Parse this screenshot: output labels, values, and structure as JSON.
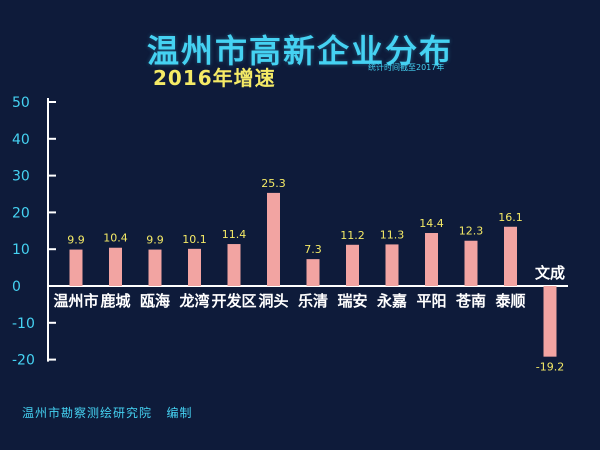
{
  "title": "温州市高新企业分布",
  "subtitle": "2016年增速",
  "note": "统计时间截至2017年",
  "footer": "温州市勘察测绘研究院   编制",
  "colors": {
    "background": "#0e1b3a",
    "bar": "#f2a4a2",
    "axis": "#ffffff",
    "title": "#45d2f2",
    "value_label": "#f4ea66",
    "tick_label": "#45d2f2",
    "category_label": "#ffffff"
  },
  "chart_data": {
    "type": "bar",
    "title": "温州市高新企业分布",
    "subtitle": "2016年增速",
    "xlabel": "",
    "ylabel": "",
    "ylim": [
      -20,
      50
    ],
    "yticks": [
      50,
      40,
      30,
      20,
      10,
      0,
      -10,
      -20
    ],
    "grid": false,
    "categories": [
      "温州市",
      "鹿城",
      "瓯海",
      "龙湾",
      "开发区",
      "洞头",
      "乐清",
      "瑞安",
      "永嘉",
      "平阳",
      "苍南",
      "泰顺",
      "文成"
    ],
    "values": [
      9.9,
      10.4,
      9.9,
      10.1,
      11.4,
      25.3,
      7.3,
      11.2,
      11.3,
      14.4,
      12.3,
      16.1,
      -19.2
    ],
    "value_labels": [
      "9.9",
      "10.4",
      "9.9",
      "10.1",
      "11.4",
      "25.3",
      "7.3",
      "11.2",
      "11.3",
      "14.4",
      "12.3",
      "16.1",
      "-19.2"
    ]
  }
}
